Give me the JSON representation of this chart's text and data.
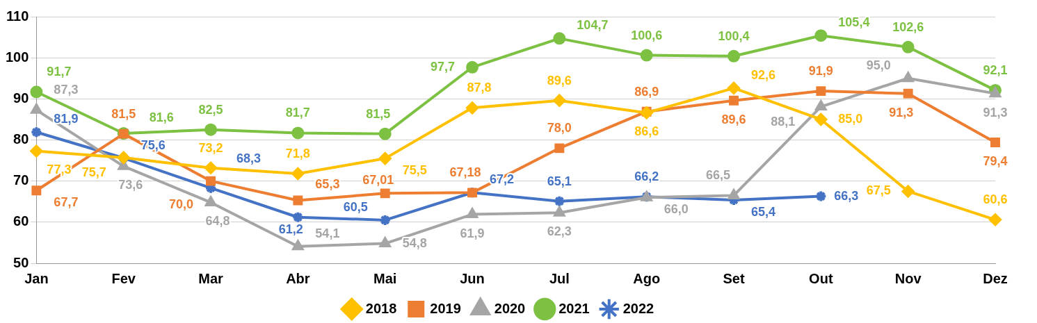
{
  "chart_data": {
    "type": "line",
    "categories": [
      "Jan",
      "Fev",
      "Mar",
      "Abr",
      "Mai",
      "Jun",
      "Jul",
      "Ago",
      "Set",
      "Out",
      "Nov",
      "Dez"
    ],
    "ylim": [
      50,
      110
    ],
    "yticks": [
      50,
      60,
      70,
      80,
      90,
      100,
      110
    ],
    "grid": "y",
    "legend": "bottom",
    "line_style": "solid",
    "series": [
      {
        "name": "2018",
        "color": "#ffc000",
        "marker": "diamond",
        "values": [
          77.3,
          75.7,
          73.2,
          71.8,
          75.5,
          87.8,
          89.6,
          86.6,
          92.6,
          85.0,
          67.5,
          60.6
        ],
        "value_labels": [
          "77,3",
          "75,7",
          "73,2",
          "71,8",
          "75,5",
          "87,8",
          "89,6",
          "86,6",
          "92,6",
          "85,0",
          "67,5",
          "60,6"
        ]
      },
      {
        "name": "2019",
        "color": "#ed7d31",
        "marker": "square",
        "values": [
          67.7,
          81.5,
          70.0,
          65.3,
          67.01,
          67.18,
          78.0,
          86.9,
          89.6,
          91.9,
          91.3,
          79.4
        ],
        "value_labels": [
          "67,7",
          "81,5",
          "70,0",
          "65,3",
          "67,01",
          "67,18",
          "78,0",
          "86,9",
          "89,6",
          "91,9",
          "91,3",
          "79,4"
        ]
      },
      {
        "name": "2020",
        "color": "#a5a5a5",
        "marker": "triangle",
        "values": [
          87.3,
          73.6,
          64.8,
          54.1,
          54.8,
          61.9,
          62.3,
          66.0,
          66.5,
          88.1,
          95.0,
          91.3
        ],
        "value_labels": [
          "87,3",
          "73,6",
          "64,8",
          "54,1",
          "54,8",
          "61,9",
          "62,3",
          "66,0",
          "66,5",
          "88,1",
          "95,0",
          "91,3"
        ]
      },
      {
        "name": "2021",
        "color": "#7dc142",
        "marker": "circle",
        "values": [
          91.7,
          81.6,
          82.5,
          81.7,
          81.5,
          97.7,
          104.7,
          100.6,
          100.4,
          105.4,
          102.6,
          92.1
        ],
        "value_labels": [
          "91,7",
          "81,6",
          "82,5",
          "81,7",
          "81,5",
          "97,7",
          "104,7",
          "100,6",
          "100,4",
          "105,4",
          "102,6",
          "92,1"
        ]
      },
      {
        "name": "2022",
        "color": "#4472c4",
        "marker": "cross",
        "values": [
          81.9,
          75.6,
          68.3,
          61.2,
          60.5,
          67.2,
          65.1,
          66.2,
          65.4,
          66.3,
          null,
          null
        ],
        "value_labels": [
          "81,9",
          "75,6",
          "68,3",
          "61,2",
          "60,5",
          "67,2",
          "65,1",
          "66,2",
          "65,4",
          "66,3",
          null,
          null
        ]
      }
    ]
  }
}
